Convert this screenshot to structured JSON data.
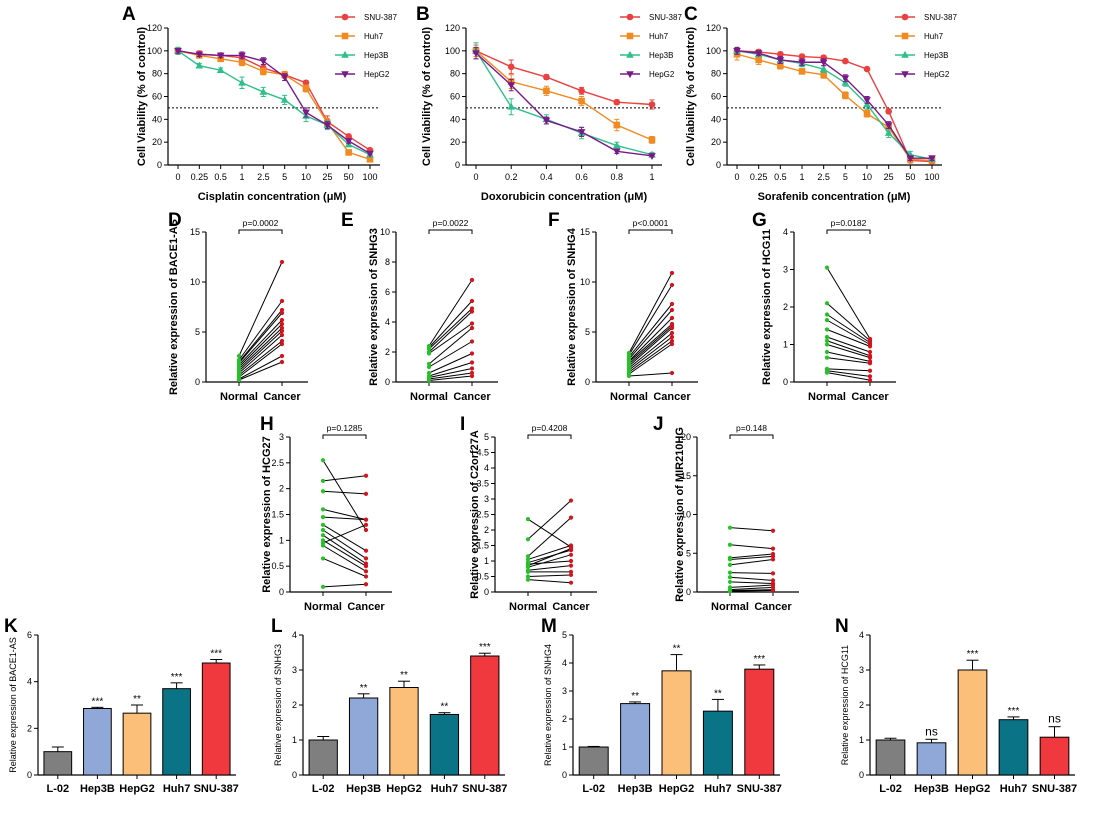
{
  "colors": {
    "snu387": "#e8413f",
    "huh7": "#f28a22",
    "hep3b": "#2fbf8a",
    "hepg2": "#7a1a8a",
    "normal_dot": "#26c126",
    "cancer_dot": "#d3141c",
    "bar_l02": "#7f7f7f",
    "bar_hep3b": "#8fa8d8",
    "bar_hepg2": "#fbbf7a",
    "bar_huh7": "#0a7386",
    "bar_snu387": "#f0383f"
  },
  "chart_data": [
    {
      "id": "A",
      "type": "line",
      "xlabel": "Cisplatin concentration (μM)",
      "ylabel": "Cell Viability (% of control)",
      "categories": [
        "0",
        "0.25",
        "0.5",
        "1",
        "2.5",
        "5",
        "10",
        "25",
        "50",
        "100"
      ],
      "ylim": [
        0,
        120
      ],
      "yticks": [
        0,
        20,
        40,
        60,
        80,
        100,
        120
      ],
      "reference_line": 50,
      "series": [
        {
          "name": "SNU-387",
          "color_key": "snu387",
          "marker": "circle",
          "values": [
            100,
            97,
            96,
            94,
            85,
            79,
            72,
            38,
            25,
            13
          ],
          "errors": [
            3,
            3,
            2,
            2,
            3,
            2,
            2,
            5,
            2,
            1
          ]
        },
        {
          "name": "Huh7",
          "color_key": "huh7",
          "marker": "square",
          "values": [
            100,
            96,
            93,
            90,
            82,
            79,
            67,
            37,
            11,
            5
          ],
          "errors": [
            3,
            2,
            2,
            3,
            3,
            3,
            3,
            4,
            2,
            2
          ]
        },
        {
          "name": "Hep3B",
          "color_key": "hep3b",
          "marker": "triangle",
          "values": [
            100,
            87,
            83,
            72,
            64,
            57,
            43,
            35,
            18,
            9
          ],
          "errors": [
            3,
            2,
            2,
            5,
            4,
            4,
            5,
            4,
            2,
            1
          ]
        },
        {
          "name": "HepG2",
          "color_key": "hepg2",
          "marker": "tri-down",
          "values": [
            100,
            97,
            96,
            96,
            91,
            77,
            46,
            35,
            21,
            10
          ],
          "errors": [
            2,
            2,
            2,
            3,
            3,
            3,
            4,
            3,
            2,
            1
          ]
        }
      ]
    },
    {
      "id": "B",
      "type": "line",
      "xlabel": "Doxorubicin concentration (μM)",
      "ylabel": "Cell Viability (% of control)",
      "categories": [
        "0",
        "0.2",
        "0.4",
        "0.6",
        "0.8",
        "1"
      ],
      "ylim": [
        0,
        120
      ],
      "yticks": [
        0,
        20,
        40,
        60,
        80,
        100,
        120
      ],
      "reference_line": 50,
      "series": [
        {
          "name": "SNU-387",
          "color_key": "snu387",
          "marker": "circle",
          "values": [
            100,
            86,
            77,
            65,
            55,
            53
          ],
          "errors": [
            5,
            6,
            2,
            3,
            2,
            4
          ]
        },
        {
          "name": "Huh7",
          "color_key": "huh7",
          "marker": "square",
          "values": [
            100,
            73,
            65,
            56,
            35,
            22
          ],
          "errors": [
            5,
            6,
            4,
            4,
            5,
            3
          ]
        },
        {
          "name": "Hep3B",
          "color_key": "hep3b",
          "marker": "triangle",
          "values": [
            100,
            51,
            40,
            28,
            17,
            9
          ],
          "errors": [
            7,
            7,
            4,
            5,
            3,
            2
          ]
        },
        {
          "name": "HepG2",
          "color_key": "hepg2",
          "marker": "tri-down",
          "values": [
            98,
            70,
            39,
            29,
            12,
            8
          ],
          "errors": [
            5,
            5,
            3,
            4,
            2,
            1
          ]
        }
      ]
    },
    {
      "id": "C",
      "type": "line",
      "xlabel": "Sorafenib concentration (μM)",
      "ylabel": "Cell Viability (% of control)",
      "categories": [
        "0",
        "0.25",
        "0.5",
        "1",
        "2.5",
        "5",
        "10",
        "25",
        "50",
        "100"
      ],
      "ylim": [
        0,
        120
      ],
      "yticks": [
        0,
        20,
        40,
        60,
        80,
        100,
        120
      ],
      "reference_line": 50,
      "series": [
        {
          "name": "SNU-387",
          "color_key": "snu387",
          "marker": "circle",
          "values": [
            100,
            99,
            97,
            95,
            94,
            91,
            84,
            47,
            4,
            3
          ],
          "errors": [
            3,
            2,
            2,
            2,
            2,
            1,
            1,
            2,
            2,
            1
          ]
        },
        {
          "name": "Huh7",
          "color_key": "huh7",
          "marker": "square",
          "values": [
            97,
            92,
            87,
            82,
            79,
            61,
            45,
            33,
            5,
            4
          ],
          "errors": [
            5,
            4,
            3,
            2,
            3,
            3,
            3,
            4,
            3,
            2
          ]
        },
        {
          "name": "Hep3B",
          "color_key": "hep3b",
          "marker": "triangle",
          "values": [
            100,
            97,
            92,
            89,
            84,
            72,
            53,
            28,
            9,
            5
          ],
          "errors": [
            3,
            2,
            3,
            3,
            3,
            3,
            4,
            4,
            3,
            2
          ]
        },
        {
          "name": "HepG2",
          "color_key": "hepg2",
          "marker": "tri-down",
          "values": [
            100,
            98,
            92,
            90,
            90,
            76,
            57,
            35,
            6,
            6
          ],
          "errors": [
            3,
            2,
            3,
            3,
            3,
            3,
            3,
            3,
            2,
            2
          ]
        }
      ]
    },
    {
      "id": "D",
      "type": "paired-dot",
      "ylabel": "Relative expression of BACE1-AS",
      "categories": [
        "Normal",
        "Cancer"
      ],
      "ylim": [
        0,
        15
      ],
      "yticks": [
        0,
        5,
        10,
        15
      ],
      "pvalue": "p=0.0002",
      "pairs": [
        [
          2.6,
          12.0
        ],
        [
          2.2,
          8.1
        ],
        [
          2.0,
          7.2
        ],
        [
          1.9,
          6.9
        ],
        [
          1.7,
          6.2
        ],
        [
          1.5,
          5.8
        ],
        [
          1.3,
          5.4
        ],
        [
          1.1,
          5.1
        ],
        [
          0.9,
          4.7
        ],
        [
          0.7,
          4.1
        ],
        [
          0.5,
          3.8
        ],
        [
          0.3,
          2.6
        ],
        [
          0.2,
          2.0
        ]
      ]
    },
    {
      "id": "E",
      "type": "paired-dot",
      "ylabel": "Relative expression of SNHG3",
      "categories": [
        "Normal",
        "Cancer"
      ],
      "ylim": [
        0,
        10
      ],
      "yticks": [
        0,
        2,
        4,
        6,
        8,
        10
      ],
      "pvalue": "p=0.0022",
      "pairs": [
        [
          2.4,
          6.8
        ],
        [
          2.3,
          5.4
        ],
        [
          2.2,
          4.9
        ],
        [
          2.0,
          4.7
        ],
        [
          1.9,
          3.9
        ],
        [
          1.2,
          3.6
        ],
        [
          1.0,
          2.7
        ],
        [
          0.6,
          1.9
        ],
        [
          0.4,
          1.3
        ],
        [
          0.3,
          0.9
        ],
        [
          0.2,
          0.6
        ],
        [
          0.1,
          0.4
        ]
      ]
    },
    {
      "id": "F",
      "type": "paired-dot",
      "ylabel": "Relative expression of SNHG4",
      "categories": [
        "Normal",
        "Cancer"
      ],
      "ylim": [
        0,
        15
      ],
      "yticks": [
        0,
        5,
        10,
        15
      ],
      "pvalue": "p<0.0001",
      "pairs": [
        [
          2.9,
          10.9
        ],
        [
          2.7,
          9.7
        ],
        [
          2.5,
          7.8
        ],
        [
          2.3,
          7.2
        ],
        [
          2.1,
          6.4
        ],
        [
          2.0,
          5.8
        ],
        [
          1.8,
          5.6
        ],
        [
          1.6,
          5.4
        ],
        [
          1.4,
          4.9
        ],
        [
          1.2,
          4.5
        ],
        [
          1.0,
          4.1
        ],
        [
          0.8,
          3.8
        ],
        [
          0.6,
          0.9
        ]
      ]
    },
    {
      "id": "G",
      "type": "paired-dot",
      "ylabel": "Relative expression of HCG11",
      "categories": [
        "Normal",
        "Cancer"
      ],
      "ylim": [
        0,
        4
      ],
      "yticks": [
        0,
        1,
        2,
        3,
        4
      ],
      "pvalue": "p=0.0182",
      "pairs": [
        [
          3.05,
          1.15
        ],
        [
          2.1,
          1.1
        ],
        [
          1.8,
          1.05
        ],
        [
          1.65,
          1.0
        ],
        [
          1.4,
          0.95
        ],
        [
          1.2,
          0.8
        ],
        [
          1.1,
          0.7
        ],
        [
          1.0,
          0.65
        ],
        [
          0.8,
          0.55
        ],
        [
          0.65,
          0.5
        ],
        [
          0.35,
          0.3
        ],
        [
          0.3,
          0.15
        ],
        [
          0.25,
          0.05
        ]
      ]
    },
    {
      "id": "H",
      "type": "paired-dot",
      "ylabel": "Relative expression of HCG27",
      "categories": [
        "Normal",
        "Cancer"
      ],
      "ylim": [
        0,
        3
      ],
      "yticks": [
        0,
        0.5,
        1,
        1.5,
        2,
        2.5,
        3
      ],
      "pvalue": "p=0.1285",
      "pairs": [
        [
          2.55,
          1.2
        ],
        [
          2.15,
          2.25
        ],
        [
          1.95,
          1.9
        ],
        [
          1.6,
          1.4
        ],
        [
          1.45,
          1.4
        ],
        [
          1.3,
          0.8
        ],
        [
          1.2,
          0.65
        ],
        [
          1.1,
          0.55
        ],
        [
          1.0,
          0.5
        ],
        [
          0.95,
          1.3
        ],
        [
          0.9,
          0.4
        ],
        [
          0.65,
          0.3
        ],
        [
          0.1,
          0.15
        ]
      ]
    },
    {
      "id": "I",
      "type": "paired-dot",
      "ylabel": "Relative expression of C2orf27A",
      "categories": [
        "Normal",
        "Cancer"
      ],
      "ylim": [
        0,
        5
      ],
      "yticks": [
        0,
        0.5,
        1,
        1.5,
        2,
        2.5,
        3,
        3.5,
        4,
        4.5,
        5
      ],
      "pvalue": "p=0.4208",
      "pairs": [
        [
          2.35,
          1.45
        ],
        [
          1.7,
          2.95
        ],
        [
          1.15,
          2.4
        ],
        [
          1.05,
          1.5
        ],
        [
          0.95,
          1.35
        ],
        [
          0.9,
          1.0
        ],
        [
          0.85,
          1.4
        ],
        [
          0.8,
          1.2
        ],
        [
          0.7,
          0.85
        ],
        [
          0.65,
          0.65
        ],
        [
          0.5,
          0.55
        ],
        [
          0.4,
          0.3
        ]
      ]
    },
    {
      "id": "J",
      "type": "paired-dot",
      "ylabel": "Relative expression of MIR210HG",
      "categories": [
        "Normal",
        "Cancer"
      ],
      "ylim": [
        0,
        20
      ],
      "yticks": [
        0,
        5,
        10,
        15,
        20
      ],
      "pvalue": "p=0.148",
      "pairs": [
        [
          8.3,
          7.9
        ],
        [
          6.1,
          5.6
        ],
        [
          4.4,
          4.9
        ],
        [
          4.2,
          4.6
        ],
        [
          3.5,
          4.2
        ],
        [
          2.5,
          2.4
        ],
        [
          1.9,
          1.5
        ],
        [
          1.3,
          1.1
        ],
        [
          0.6,
          0.9
        ],
        [
          0.3,
          0.6
        ],
        [
          0.2,
          0.3
        ],
        [
          0.1,
          0.2
        ]
      ]
    },
    {
      "id": "K",
      "type": "bar",
      "ylabel": "Relative expression of BACE1-AS",
      "categories": [
        "L-02",
        "Hep3B",
        "HepG2",
        "Huh7",
        "SNU-387"
      ],
      "ylim": [
        0,
        6
      ],
      "yticks": [
        0,
        2,
        4,
        6
      ],
      "values": [
        1.0,
        2.85,
        2.65,
        3.7,
        4.8
      ],
      "errors": [
        0.2,
        0.05,
        0.35,
        0.25,
        0.15
      ],
      "significance": [
        "",
        "***",
        "**",
        "***",
        "***"
      ],
      "color_keys": [
        "bar_l02",
        "bar_hep3b",
        "bar_hepg2",
        "bar_huh7",
        "bar_snu387"
      ]
    },
    {
      "id": "L",
      "type": "bar",
      "ylabel": "Relative expression of SNHG3",
      "categories": [
        "L-02",
        "Hep3B",
        "HepG2",
        "Huh7",
        "SNU-387"
      ],
      "ylim": [
        0,
        4
      ],
      "yticks": [
        0,
        1,
        2,
        3,
        4
      ],
      "values": [
        1.0,
        2.2,
        2.5,
        1.73,
        3.4
      ],
      "errors": [
        0.1,
        0.12,
        0.18,
        0.05,
        0.08
      ],
      "significance": [
        "",
        "**",
        "**",
        "**",
        "***"
      ],
      "color_keys": [
        "bar_l02",
        "bar_hep3b",
        "bar_hepg2",
        "bar_huh7",
        "bar_snu387"
      ]
    },
    {
      "id": "M",
      "type": "bar",
      "ylabel": "Relative expression of SNHG4",
      "categories": [
        "L-02",
        "Hep3B",
        "HepG2",
        "Huh7",
        "SNU-387"
      ],
      "ylim": [
        0,
        5
      ],
      "yticks": [
        0,
        1,
        2,
        3,
        4,
        5
      ],
      "values": [
        1.0,
        2.55,
        3.72,
        2.28,
        3.78
      ],
      "errors": [
        0.02,
        0.06,
        0.58,
        0.42,
        0.15
      ],
      "significance": [
        "",
        "**",
        "**",
        "**",
        "***"
      ],
      "color_keys": [
        "bar_l02",
        "bar_hep3b",
        "bar_hepg2",
        "bar_huh7",
        "bar_snu387"
      ]
    },
    {
      "id": "N",
      "type": "bar",
      "ylabel": "Relative expression of HCG11",
      "categories": [
        "L-02",
        "Hep3B",
        "HepG2",
        "Huh7",
        "SNU-387"
      ],
      "ylim": [
        0,
        4
      ],
      "yticks": [
        0,
        1,
        2,
        3,
        4
      ],
      "values": [
        1.0,
        0.92,
        3.0,
        1.58,
        1.08
      ],
      "errors": [
        0.05,
        0.1,
        0.28,
        0.08,
        0.3
      ],
      "significance": [
        "",
        "ns",
        "***",
        "***",
        "ns"
      ],
      "color_keys": [
        "bar_l02",
        "bar_hep3b",
        "bar_hepg2",
        "bar_huh7",
        "bar_snu387"
      ]
    }
  ]
}
